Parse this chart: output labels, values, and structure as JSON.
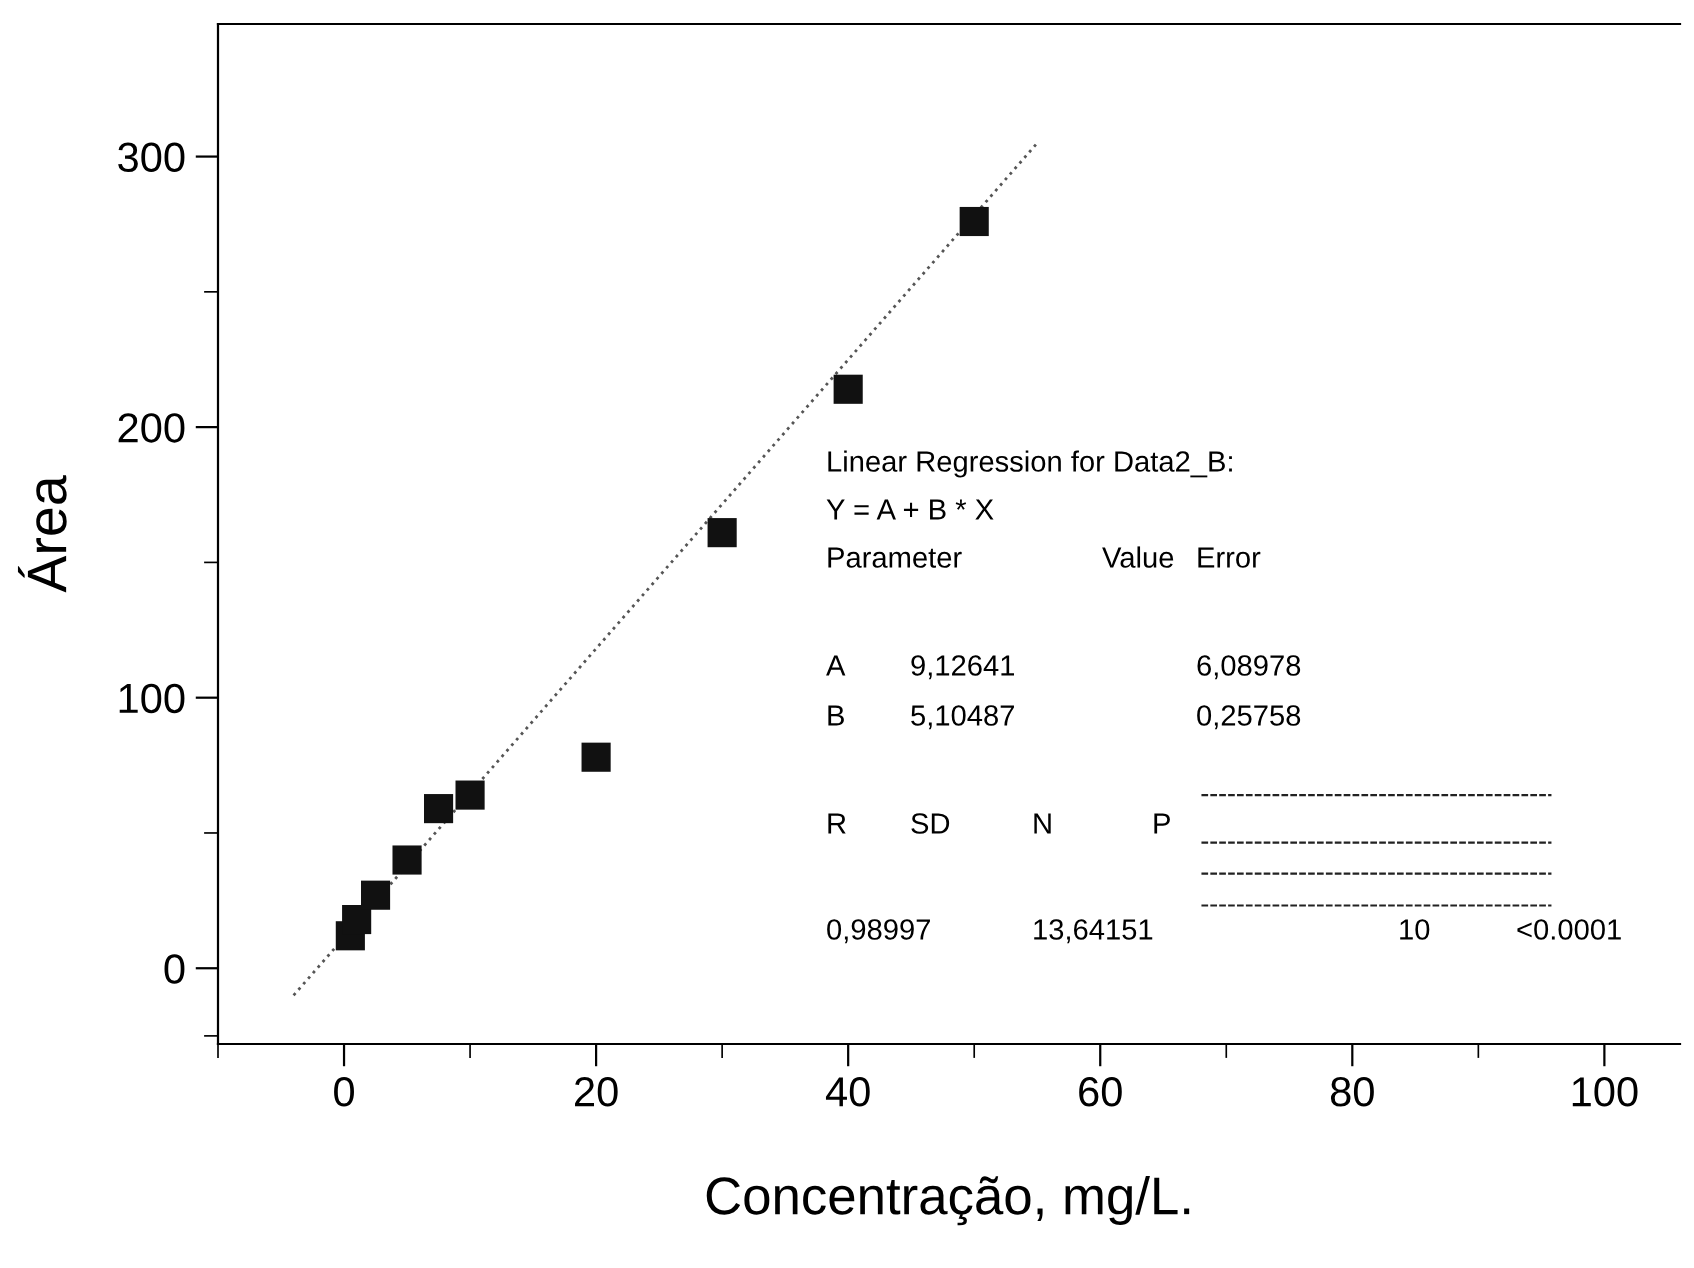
{
  "chart_data": {
    "type": "scatter",
    "xlabel": "Concentração, mg/L.",
    "ylabel": "Área",
    "xlim": [
      -10,
      106
    ],
    "ylim": [
      -28,
      349
    ],
    "xticks": [
      {
        "value": -10,
        "label": null
      },
      0,
      {
        "value": 10,
        "label": null
      },
      20,
      {
        "value": 30,
        "label": null
      },
      40,
      {
        "value": 50,
        "label": null
      },
      60,
      {
        "value": 70,
        "label": null
      },
      80,
      {
        "value": 90,
        "label": null
      },
      100
    ],
    "yticks": [
      {
        "value": -25,
        "label": null
      },
      0,
      {
        "value": 50,
        "label": null
      },
      100,
      {
        "value": 150,
        "label": null
      },
      200,
      {
        "value": 250,
        "label": null
      },
      300
    ],
    "grid": false,
    "legend": false,
    "series": [
      {
        "marker": "square",
        "color": "#111111",
        "x": [
          0.5,
          1,
          2.5,
          5,
          7.5,
          10,
          20,
          30,
          40,
          50
        ],
        "values": [
          12,
          18,
          27,
          40,
          59,
          64,
          78,
          161,
          214,
          276
        ]
      },
      {
        "type": "line",
        "marker": "none",
        "line_style": "dotted",
        "color": "#555555",
        "x": [
          -4,
          55
        ],
        "values": [
          -10,
          305
        ]
      }
    ],
    "annotations": [
      "Linear Regression for Data2_B:",
      "Y = A + B * X",
      "Parameter",
      "Value",
      "Error",
      "A",
      "9,12641",
      "6,08978",
      "B",
      "5,10487",
      "0,25758",
      "R",
      "SD",
      "N",
      "P",
      "0,98997",
      "13,64151",
      "10",
      "<0.0001"
    ]
  }
}
